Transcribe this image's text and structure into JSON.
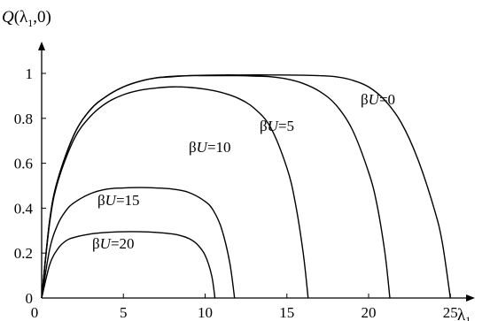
{
  "chart_data": {
    "type": "line",
    "ylabel": "Q(λ₁,0)",
    "xlabel": "λ₁",
    "xlim": [
      0,
      27
    ],
    "ylim": [
      0,
      1.08
    ],
    "x_ticks": [
      "0",
      "5",
      "10",
      "15",
      "20",
      "25"
    ],
    "y_ticks": [
      "0",
      "0.2",
      "0.4",
      "0.6",
      "0.8",
      "1"
    ],
    "grid": false,
    "legend": "labels placed next to curves",
    "series": [
      {
        "name": "βU=0",
        "x": [
          0,
          0.5,
          1,
          2,
          3,
          4,
          5,
          6,
          7,
          8,
          9,
          10,
          11,
          12,
          14,
          16,
          17,
          18,
          19,
          20,
          21,
          22,
          23,
          24,
          24.5,
          25
        ],
        "y": [
          0,
          0.35,
          0.53,
          0.73,
          0.84,
          0.9,
          0.94,
          0.965,
          0.98,
          0.987,
          0.99,
          0.992,
          0.993,
          0.993,
          0.993,
          0.992,
          0.99,
          0.985,
          0.97,
          0.94,
          0.88,
          0.78,
          0.62,
          0.4,
          0.25,
          0
        ]
      },
      {
        "name": "βU=5",
        "x": [
          0,
          0.5,
          1,
          2,
          3,
          4,
          5,
          6,
          7,
          8,
          9,
          10,
          11,
          12,
          13,
          14,
          15,
          16,
          17,
          18,
          19,
          20,
          20.5,
          21,
          21.3
        ],
        "y": [
          0,
          0.35,
          0.53,
          0.73,
          0.84,
          0.9,
          0.94,
          0.965,
          0.98,
          0.985,
          0.99,
          0.99,
          0.99,
          0.99,
          0.988,
          0.985,
          0.975,
          0.955,
          0.92,
          0.86,
          0.75,
          0.56,
          0.42,
          0.2,
          0
        ]
      },
      {
        "name": "βU=10",
        "x": [
          0,
          0.5,
          1,
          2,
          3,
          4,
          5,
          6,
          7,
          8,
          9,
          10,
          11,
          12,
          13,
          14,
          15,
          15.5,
          16,
          16.3
        ],
        "y": [
          0,
          0.34,
          0.52,
          0.71,
          0.81,
          0.87,
          0.905,
          0.925,
          0.935,
          0.94,
          0.938,
          0.93,
          0.915,
          0.89,
          0.845,
          0.76,
          0.58,
          0.43,
          0.2,
          0
        ]
      },
      {
        "name": "βU=15",
        "x": [
          0,
          0.5,
          1,
          1.5,
          2,
          3,
          4,
          5,
          6,
          7,
          8,
          9,
          10,
          10.5,
          11,
          11.5,
          11.8
        ],
        "y": [
          0,
          0.22,
          0.33,
          0.39,
          0.425,
          0.465,
          0.485,
          0.49,
          0.492,
          0.49,
          0.485,
          0.47,
          0.43,
          0.39,
          0.31,
          0.16,
          0
        ]
      },
      {
        "name": "βU=20",
        "x": [
          0,
          0.5,
          1,
          1.5,
          2,
          3,
          4,
          5,
          6,
          7,
          8,
          8.5,
          9,
          9.5,
          10,
          10.4,
          10.6
        ],
        "y": [
          0,
          0.15,
          0.22,
          0.255,
          0.27,
          0.285,
          0.292,
          0.295,
          0.295,
          0.292,
          0.285,
          0.278,
          0.265,
          0.24,
          0.19,
          0.1,
          0
        ]
      }
    ]
  },
  "labels": {
    "s0": {
      "beta": "β",
      "u": "U",
      "rest": "=0"
    },
    "s5": {
      "beta": "β",
      "u": "U",
      "rest": "=5"
    },
    "s10": {
      "beta": "β",
      "u": "U",
      "rest": "=10"
    },
    "s15": {
      "beta": "β",
      "u": "U",
      "rest": "=15"
    },
    "s20": {
      "beta": "β",
      "u": "U",
      "rest": "=20"
    }
  },
  "axes": {
    "y_title": {
      "q": "Q",
      "open": "(λ",
      "sub": "1",
      "close": ",0)"
    },
    "x_title": {
      "lambda": "λ",
      "sub": "1"
    }
  }
}
